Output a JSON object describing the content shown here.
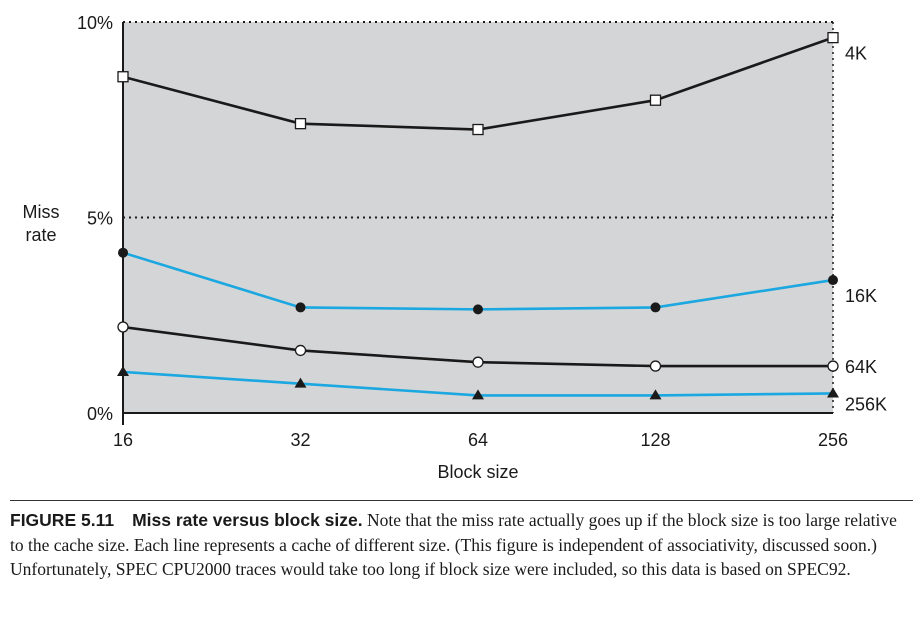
{
  "chart_data": {
    "type": "line",
    "x": [
      "16",
      "32",
      "64",
      "128",
      "256"
    ],
    "xlabel": "Block size",
    "ylabel": [
      "Miss",
      "rate"
    ],
    "yticks": [
      "0%",
      "5%",
      "10%"
    ],
    "ylim": [
      0,
      10
    ],
    "gridlines": [
      5,
      10
    ],
    "series": [
      {
        "name": "4K",
        "values": [
          8.6,
          7.4,
          7.25,
          8.0,
          9.6
        ],
        "color": "#1a1a1a",
        "marker": "square-open"
      },
      {
        "name": "16K",
        "values": [
          4.1,
          2.7,
          2.65,
          2.7,
          3.4
        ],
        "color": "#1ba7e0",
        "marker": "circle-filled"
      },
      {
        "name": "64K",
        "values": [
          2.2,
          1.6,
          1.3,
          1.2,
          1.2
        ],
        "color": "#1a1a1a",
        "marker": "circle-open"
      },
      {
        "name": "256K",
        "values": [
          1.05,
          0.75,
          0.45,
          0.45,
          0.5
        ],
        "color": "#1ba7e0",
        "marker": "triangle-filled"
      }
    ],
    "plot_bg": "#d4d5d7"
  },
  "caption": {
    "figure_number": "FIGURE 5.11",
    "title": "Miss rate versus block size.",
    "text": "Note that the miss rate actually goes up if the block size is too large relative to the cache size. Each line represents a cache of different size. (This figure is independent of associativity, discussed soon.) Unfortunately, SPEC CPU2000 traces would take too long if block size were included, so this data is based on SPEC92."
  }
}
